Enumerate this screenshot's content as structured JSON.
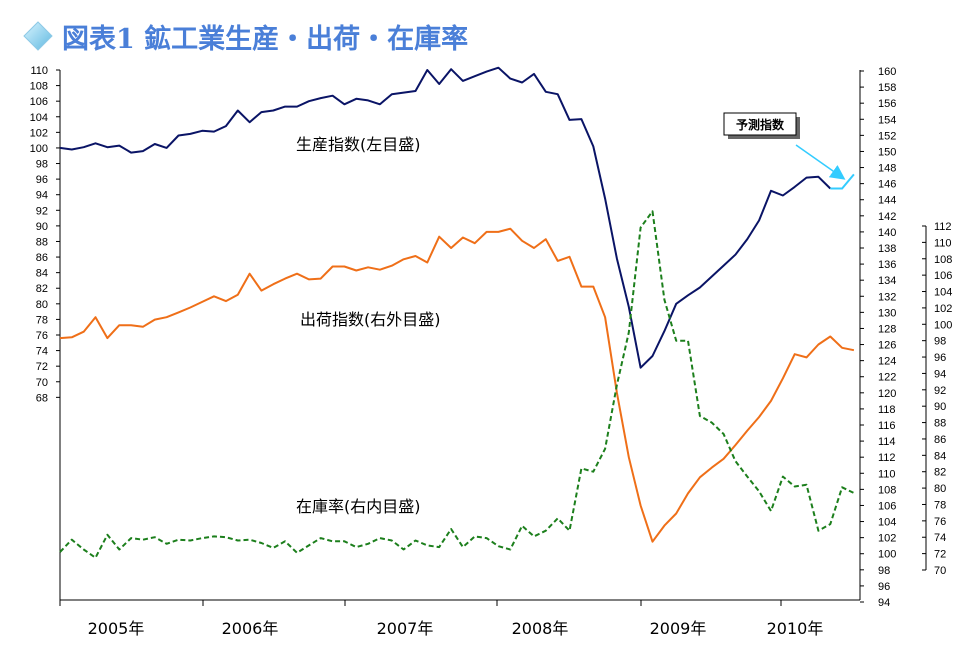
{
  "chart_data": {
    "type": "line",
    "title": "図表1 鉱工業生産・出荷・在庫率",
    "x_tick_labels": [
      "2005年",
      "2006年",
      "2007年",
      "2008年",
      "2009年",
      "2010年"
    ],
    "left_axis": {
      "min": 68,
      "max": 110,
      "step": 2
    },
    "right_axis_outer": {
      "min": 94,
      "max": 160,
      "step": 2
    },
    "right_axis_inner": {
      "min": 70,
      "max": 112,
      "step": 2
    },
    "series": [
      {
        "name": "生産指数(左目盛)",
        "axis": "left",
        "color": "#0a1466",
        "dash": "",
        "values": [
          100.0,
          99.8,
          100.1,
          100.6,
          100.1,
          100.3,
          99.4,
          99.6,
          100.5,
          100.0,
          101.6,
          101.8,
          102.2,
          102.1,
          102.8,
          104.8,
          103.3,
          104.6,
          104.8,
          105.3,
          105.3,
          106.0,
          106.4,
          106.7,
          105.6,
          106.3,
          106.1,
          105.6,
          106.9,
          107.1,
          107.3,
          110.0,
          108.2,
          110.1,
          108.6,
          109.2,
          109.8,
          110.3,
          108.9,
          108.4,
          109.5,
          107.2,
          106.9,
          103.6,
          103.7,
          100.2,
          93.5,
          85.8,
          79.6,
          71.8,
          73.3,
          76.5,
          80.0,
          81.1,
          82.1,
          83.5,
          84.9,
          86.3,
          88.3,
          90.7,
          94.5,
          93.9,
          95.0,
          96.2,
          96.3,
          94.8
        ],
        "forecast_values": [
          94.8,
          94.8,
          96.6
        ]
      },
      {
        "name": "出荷指数(右外目盛)",
        "axis": "right_outer",
        "color": "#ef6f18",
        "dash": "",
        "values": [
          126.8,
          126.9,
          127.6,
          129.4,
          126.8,
          128.4,
          128.4,
          128.2,
          129.1,
          129.4,
          130.0,
          130.6,
          131.3,
          132.0,
          131.4,
          132.2,
          134.8,
          132.7,
          133.5,
          134.2,
          134.8,
          134.1,
          134.2,
          135.7,
          135.7,
          135.2,
          135.6,
          135.3,
          135.8,
          136.6,
          137.0,
          136.2,
          139.4,
          138.0,
          139.3,
          138.6,
          140.0,
          140.0,
          140.4,
          138.9,
          138.0,
          139.1,
          136.4,
          136.9,
          133.2,
          133.2,
          129.4,
          120.0,
          112.0,
          106.0,
          101.5,
          103.5,
          105.0,
          107.5,
          109.5,
          110.7,
          111.8,
          113.5,
          115.3,
          117.0,
          119.0,
          121.8,
          124.8,
          124.4,
          126.0,
          127.0,
          125.6,
          125.3
        ]
      },
      {
        "name": "在庫率(右内目盛)",
        "axis": "right_inner",
        "color": "#1c7f1c",
        "dash": "5,3",
        "values": [
          72.2,
          73.7,
          72.5,
          71.5,
          74.3,
          72.5,
          73.9,
          73.7,
          74.0,
          73.2,
          73.7,
          73.6,
          73.9,
          74.1,
          74.0,
          73.6,
          73.7,
          73.3,
          72.7,
          73.5,
          72.1,
          73.0,
          73.9,
          73.5,
          73.5,
          72.8,
          73.2,
          73.9,
          73.6,
          72.5,
          73.6,
          73.0,
          72.8,
          75.0,
          72.8,
          74.1,
          73.9,
          72.9,
          72.5,
          75.4,
          74.1,
          74.8,
          76.3,
          74.8,
          82.4,
          82.0,
          84.8,
          92.6,
          99.0,
          111.8,
          113.8,
          103.0,
          98.0,
          98.0,
          88.8,
          88.0,
          86.6,
          83.3,
          81.4,
          79.6,
          77.2,
          81.4,
          80.2,
          80.4,
          74.8,
          75.6,
          80.1,
          79.4
        ]
      }
    ],
    "annotations": [
      {
        "text": "生産指数(左目盛)"
      },
      {
        "text": "出荷指数(右外目盛)"
      },
      {
        "text": "在庫率(右内目盛)"
      }
    ],
    "callout": {
      "text": "予測指数",
      "arrow_color": "#33ccff"
    },
    "grid": false
  }
}
